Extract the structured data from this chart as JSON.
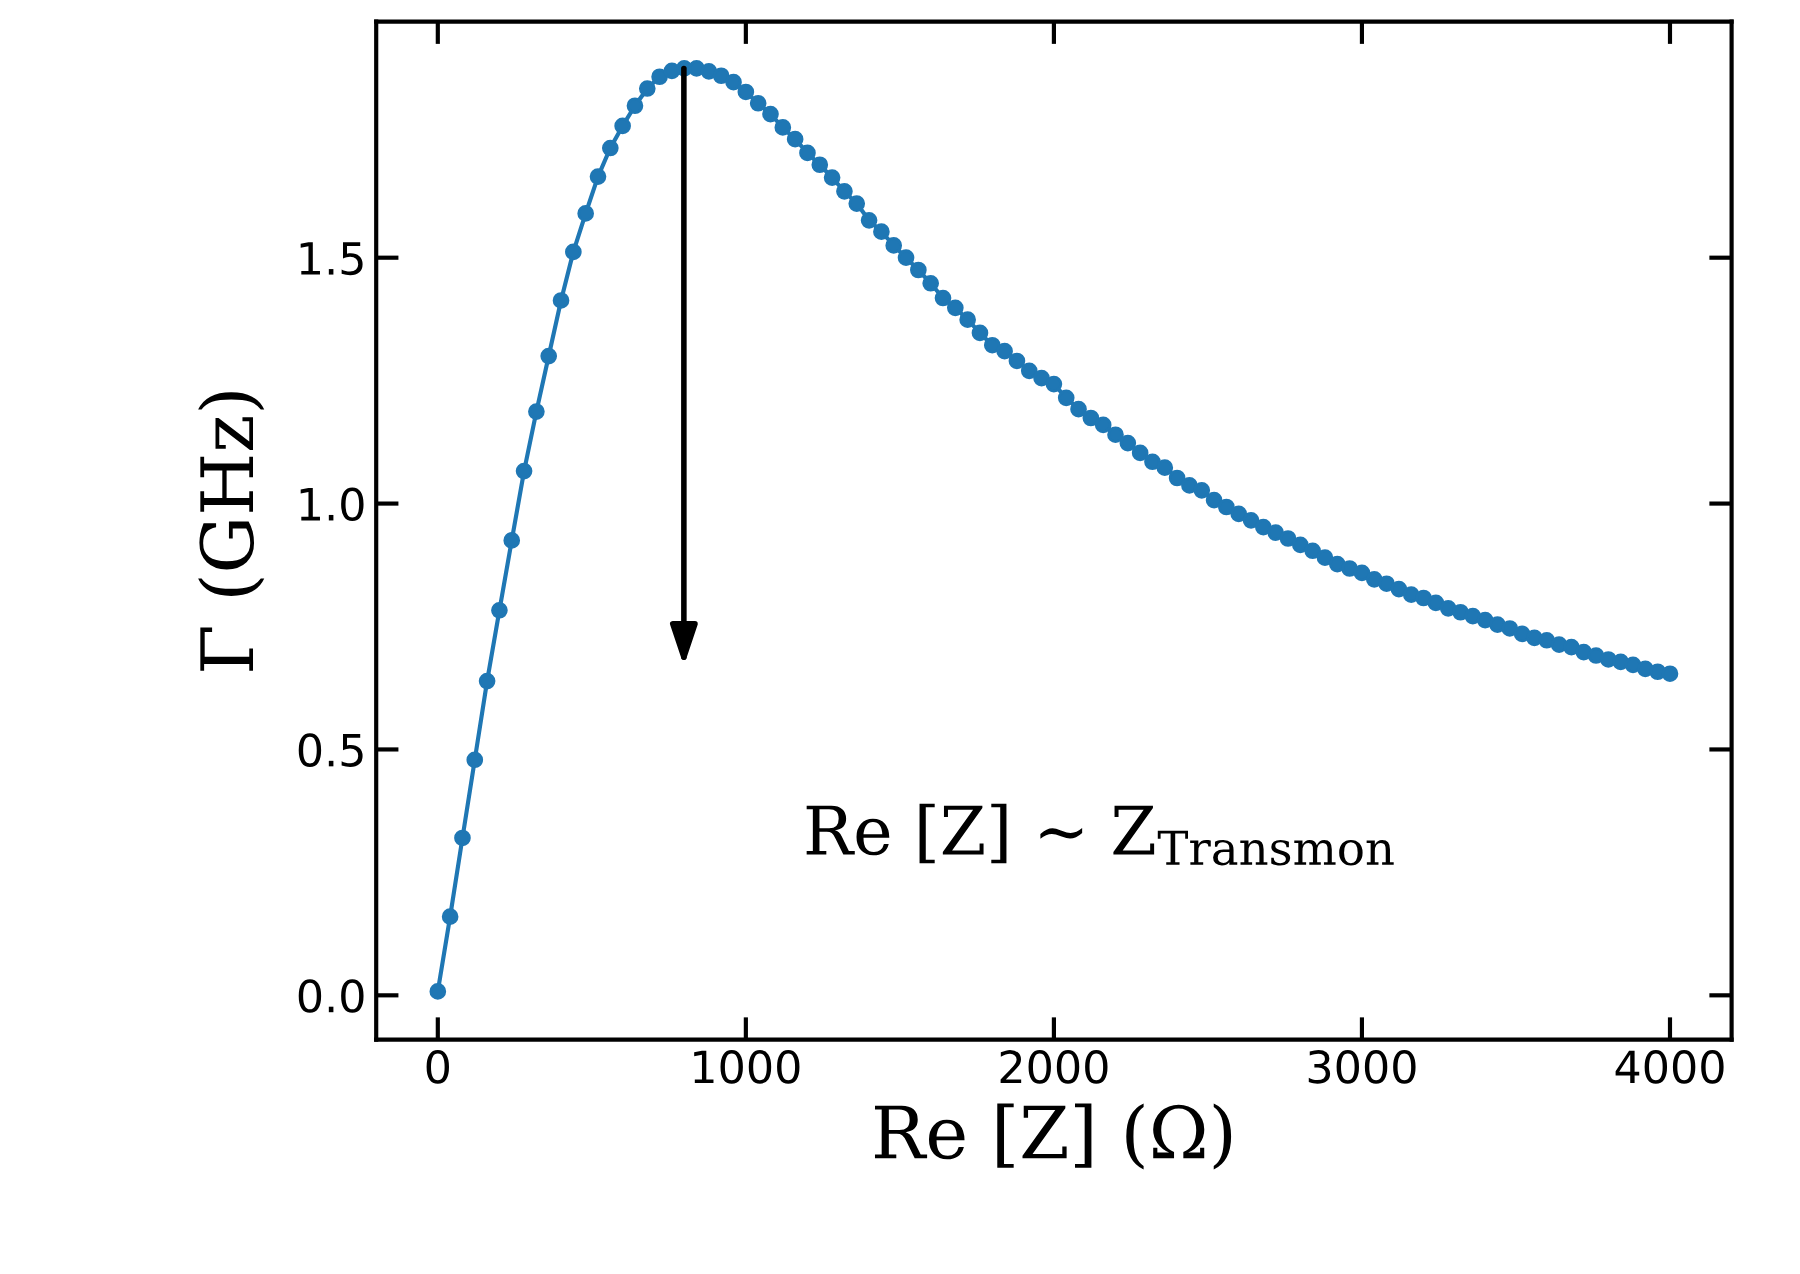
{
  "chart_data": {
    "type": "line",
    "xlabel": "Re [Z] (Ω)",
    "ylabel": "Γ (GHz)",
    "xlim": [
      -200,
      4200
    ],
    "ylim": [
      -0.09,
      1.98
    ],
    "xticks": [
      0,
      1000,
      2000,
      3000,
      4000
    ],
    "yticks": [
      {
        "value": 0,
        "label": "0.0"
      },
      0.5,
      {
        "value": 1,
        "label": "1.0"
      },
      1.5
    ],
    "marker": "circle",
    "line_style": "solid",
    "grid": false,
    "legend": false,
    "annotations": [
      "Re [Z] ∼ Z$_{Transmon}$"
    ],
    "x": [
      0,
      40,
      80,
      120,
      160,
      200,
      240,
      280,
      320,
      360,
      400,
      440,
      480,
      520,
      560,
      600,
      640,
      680,
      720,
      760,
      800,
      840,
      880,
      920,
      960,
      1000,
      1040,
      1080,
      1120,
      1160,
      1200,
      1240,
      1280,
      1320,
      1360,
      1400,
      1440,
      1480,
      1520,
      1560,
      1600,
      1640,
      1680,
      1720,
      1760,
      1800,
      1840,
      1880,
      1920,
      1960,
      2000,
      2040,
      2080,
      2120,
      2160,
      2200,
      2240,
      2280,
      2320,
      2360,
      2400,
      2440,
      2480,
      2520,
      2560,
      2600,
      2640,
      2680,
      2720,
      2760,
      2800,
      2840,
      2880,
      2920,
      2960,
      3000,
      3040,
      3080,
      3120,
      3160,
      3200,
      3240,
      3280,
      3320,
      3360,
      3400,
      3440,
      3480,
      3520,
      3560,
      3600,
      3640,
      3680,
      3720,
      3760,
      3800,
      3840,
      3880,
      3920,
      3960,
      4000
    ],
    "series": [
      {
        "color": "#1f77b4",
        "values": [
          0.008,
          0.16,
          0.32,
          0.479,
          0.639,
          0.783,
          0.925,
          1.066,
          1.187,
          1.3,
          1.413,
          1.512,
          1.59,
          1.665,
          1.723,
          1.768,
          1.809,
          1.844,
          1.868,
          1.88,
          1.885,
          1.885,
          1.879,
          1.87,
          1.857,
          1.837,
          1.814,
          1.792,
          1.765,
          1.741,
          1.713,
          1.689,
          1.663,
          1.635,
          1.61,
          1.576,
          1.553,
          1.525,
          1.5,
          1.475,
          1.448,
          1.418,
          1.398,
          1.374,
          1.347,
          1.322,
          1.31,
          1.29,
          1.27,
          1.255,
          1.243,
          1.215,
          1.192,
          1.174,
          1.16,
          1.14,
          1.123,
          1.103,
          1.085,
          1.073,
          1.052,
          1.037,
          1.027,
          1.007,
          0.993,
          0.979,
          0.966,
          0.952,
          0.941,
          0.929,
          0.916,
          0.904,
          0.89,
          0.877,
          0.868,
          0.859,
          0.846,
          0.837,
          0.826,
          0.815,
          0.808,
          0.798,
          0.787,
          0.779,
          0.771,
          0.763,
          0.754,
          0.746,
          0.735,
          0.727,
          0.722,
          0.713,
          0.708,
          0.698,
          0.691,
          0.683,
          0.678,
          0.672,
          0.664,
          0.658,
          0.654
        ]
      }
    ]
  }
}
